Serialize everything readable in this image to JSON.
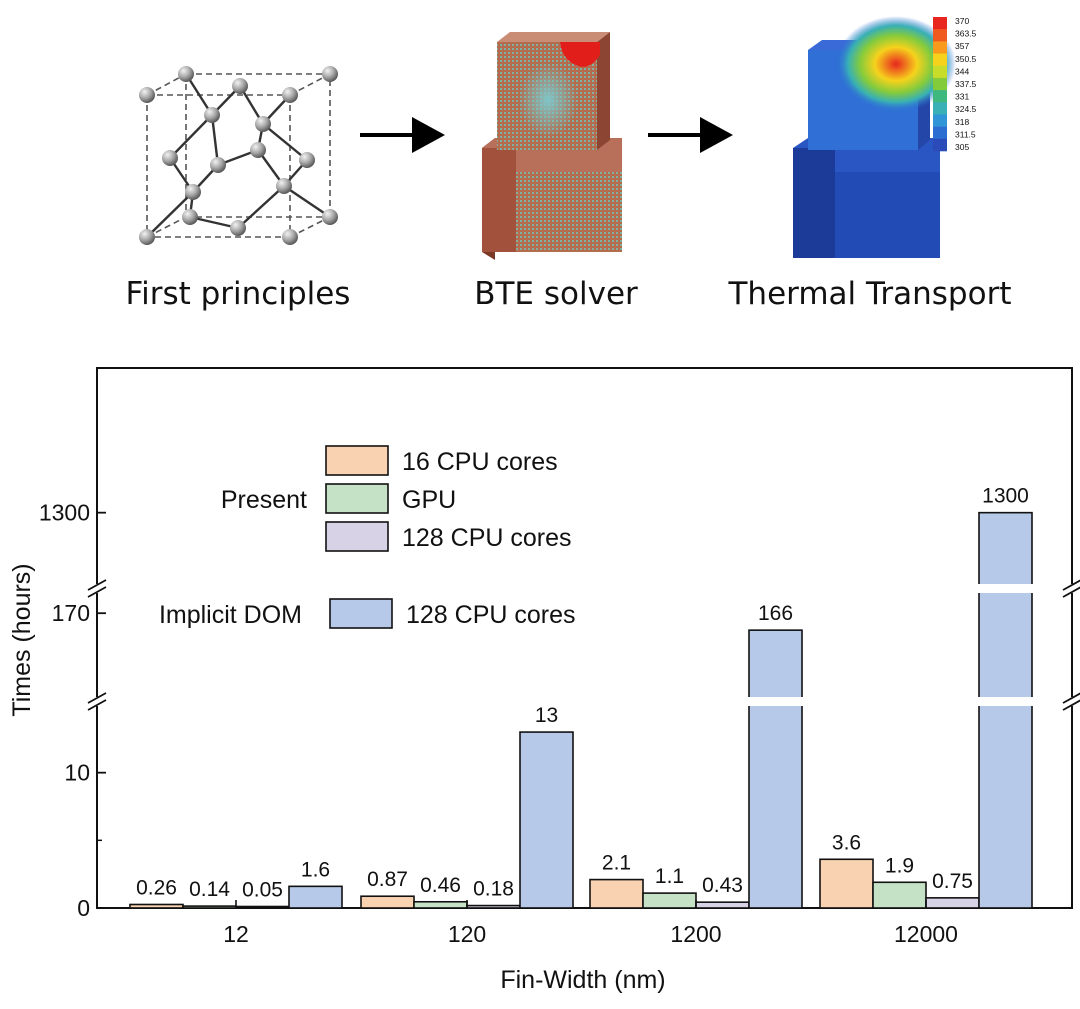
{
  "workflow": {
    "steps": [
      "First principles",
      "BTE solver",
      "Thermal Transport"
    ],
    "colorbar_ticks": [
      "370",
      "363.5",
      "357",
      "350.5",
      "344",
      "337.5",
      "331",
      "324.5",
      "318",
      "311.5",
      "305"
    ],
    "colorbar_colors": [
      "#e8261f",
      "#f15a1f",
      "#f99a1d",
      "#f6d21c",
      "#c8dc2a",
      "#84cb3c",
      "#3fb87f",
      "#38b0b5",
      "#2f95d6",
      "#2c6dd1",
      "#2b4cb8"
    ]
  },
  "chart_data": {
    "type": "bar",
    "xlabel": "Fin-Width (nm)",
    "ylabel": "Times (hours)",
    "categories": [
      "12",
      "120",
      "1200",
      "12000"
    ],
    "series": [
      {
        "name": "16 CPU cores",
        "group": "Present",
        "color": "#f9d2b2",
        "values": [
          0.26,
          0.87,
          2.1,
          3.6
        ],
        "labels": [
          "0.26",
          "0.87",
          "2.1",
          "3.6"
        ]
      },
      {
        "name": "GPU",
        "group": "Present",
        "color": "#c6e2c6",
        "values": [
          0.14,
          0.46,
          1.1,
          1.9
        ],
        "labels": [
          "0.14",
          "0.46",
          "1.1",
          "1.9"
        ]
      },
      {
        "name": "128 CPU cores",
        "group": "Present",
        "color": "#d8d2e6",
        "values": [
          0.05,
          0.18,
          0.43,
          0.75
        ],
        "labels": [
          "0.05",
          "0.18",
          "0.43",
          "0.75"
        ]
      },
      {
        "name": "128 CPU cores",
        "group": "Implicit DOM",
        "color": "#b6c9e8",
        "values": [
          1.6,
          13,
          166,
          1300
        ],
        "labels": [
          "1.6",
          "13",
          "166",
          "1300"
        ]
      }
    ],
    "yticks": [
      "0",
      "10",
      "170",
      "1300"
    ],
    "y_axis_breaks": [
      [
        15,
        150
      ],
      [
        175,
        1250
      ]
    ],
    "legend": {
      "group_present": "Present",
      "group_implicit": "Implicit DOM",
      "labels": [
        "16 CPU cores",
        "GPU",
        "128 CPU cores",
        "128 CPU cores"
      ]
    }
  }
}
